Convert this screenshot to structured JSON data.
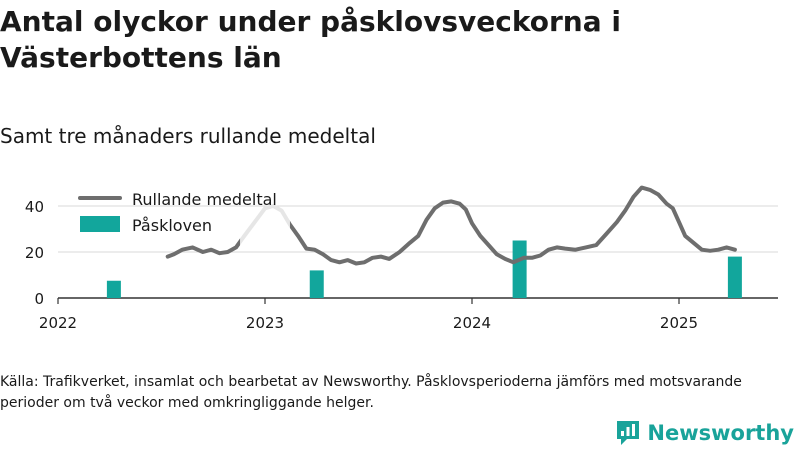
{
  "title": "Antal olyckor under påsklovsveckorna i Västerbottens län",
  "subtitle": "Samt tre månaders rullande medeltal",
  "source": "Källa: Trafikverket, insamlat och bearbetat av Newsworthy. Påsklovsperioderna jämförs med motsvarande perioder om två veckor med omkringliggande helger.",
  "brand": "Newsworthy",
  "colors": {
    "line": "#6e6e6e",
    "bar": "#12a69c",
    "grid": "#d9d9d9",
    "axis": "#333333",
    "brand": "#19a39a"
  },
  "chart_data": {
    "type": "line+bar",
    "x_ticks": [
      "2022",
      "2023",
      "2024",
      "2025"
    ],
    "y_ticks": [
      "0",
      "20",
      "40"
    ],
    "ylim": [
      0,
      48
    ],
    "legend_position": "top-left",
    "series": [
      {
        "name": "Rullande medeltal",
        "type": "line",
        "color": "#6e6e6e",
        "x": [
          2022.53,
          2022.56,
          2022.6,
          2022.65,
          2022.7,
          2022.74,
          2022.78,
          2022.82,
          2022.86,
          2022.9,
          2022.95,
          2023.0,
          2023.04,
          2023.08,
          2023.12,
          2023.16,
          2023.2,
          2023.24,
          2023.28,
          2023.32,
          2023.36,
          2023.4,
          2023.44,
          2023.48,
          2023.52,
          2023.56,
          2023.6,
          2023.65,
          2023.7,
          2023.74,
          2023.78,
          2023.82,
          2023.86,
          2023.9,
          2023.94,
          2023.97,
          2024.0,
          2024.04,
          2024.08,
          2024.12,
          2024.16,
          2024.2,
          2024.25,
          2024.29,
          2024.33,
          2024.37,
          2024.41,
          2024.45,
          2024.5,
          2024.55,
          2024.6,
          2024.65,
          2024.7,
          2024.74,
          2024.78,
          2024.82,
          2024.86,
          2024.9,
          2024.94,
          2024.97,
          2025.0,
          2025.03,
          2025.07,
          2025.11,
          2025.15,
          2025.19,
          2025.23,
          2025.27
        ],
        "values": [
          18,
          19,
          21,
          22,
          20,
          21,
          19.5,
          20,
          22,
          27,
          33,
          39,
          40,
          38,
          32,
          27,
          21.5,
          21,
          19,
          16.5,
          15.5,
          16.5,
          15,
          15.5,
          17.5,
          18,
          17,
          20,
          24,
          27,
          34,
          39,
          41.5,
          42,
          41,
          38.5,
          32.5,
          27,
          23,
          19,
          17,
          15.5,
          17.5,
          17.5,
          18.5,
          21,
          22,
          21.5,
          21,
          22,
          23,
          28,
          33,
          38,
          44,
          48,
          47,
          45,
          41,
          39,
          33,
          27,
          24,
          21,
          20.5,
          21,
          22,
          21
        ],
        "highlight_range": [
          2022.88,
          2023.12
        ]
      },
      {
        "name": "Påskloven",
        "type": "bar",
        "color": "#12a69c",
        "x": [
          2022.27,
          2023.25,
          2024.23,
          2025.27
        ],
        "values": [
          7.5,
          12,
          25,
          18
        ]
      }
    ]
  }
}
